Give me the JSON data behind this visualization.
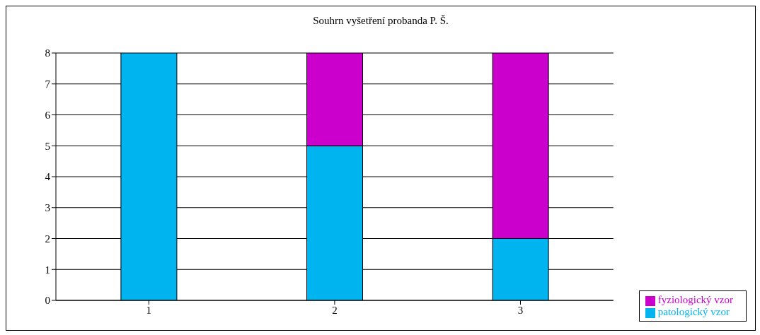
{
  "chart_data": {
    "type": "bar",
    "title": "Souhrn vyšetření probanda P. Š.",
    "categories": [
      "1",
      "2",
      "3"
    ],
    "stacked": true,
    "series": [
      {
        "name": "patologický vzor",
        "color": "#00b4f0",
        "values": [
          8,
          5,
          2
        ]
      },
      {
        "name": "fyziologický vzor",
        "color": "#cc00cc",
        "values": [
          0,
          3,
          6
        ]
      }
    ],
    "ylim": [
      0,
      8
    ],
    "yticks": [
      0,
      1,
      2,
      3,
      4,
      5,
      6,
      7,
      8
    ],
    "grid": "y",
    "legend": "bottom right"
  }
}
